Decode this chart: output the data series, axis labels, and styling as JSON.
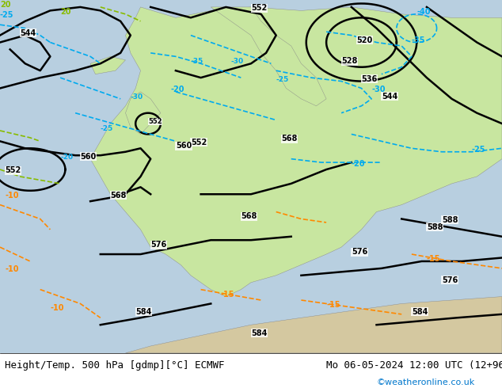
{
  "title_left": "Height/Temp. 500 hPa [gdmp][°C] ECMWF",
  "title_right": "Mo 06-05-2024 12:00 UTC (12+96)",
  "watermark": "©weatheronline.co.uk",
  "bg_color": "#d0d0d0",
  "land_color": "#c8e6a0",
  "sea_color": "#c8d8e8",
  "bottom_bar_color": "#ffffff",
  "text_color": "#000000",
  "contour_color_height": "#000000",
  "contour_color_temp_neg": "#00aaff",
  "contour_color_temp_pos": "#ff8800",
  "contour_color_temp_warm": "#88cc00",
  "font_size_title": 9,
  "font_size_watermark": 8
}
